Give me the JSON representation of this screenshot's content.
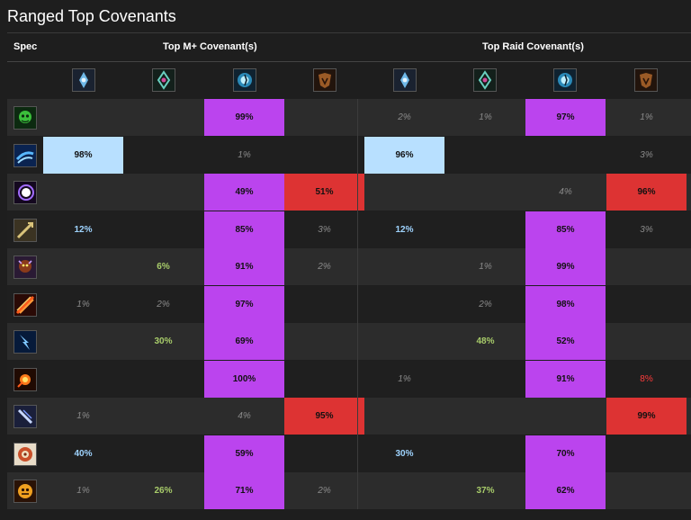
{
  "page": {
    "title": "Ranged Top Covenants"
  },
  "headers": {
    "spec": "Spec",
    "mplus": "Top M+ Covenant(s)",
    "raid": "Top Raid Covenant(s)"
  },
  "covenants": [
    {
      "icon": "kyrian-icon"
    },
    {
      "icon": "night-fae-icon"
    },
    {
      "icon": "necrolord-icon"
    },
    {
      "icon": "venthyr-icon"
    },
    {
      "icon": "kyrian-icon"
    },
    {
      "icon": "night-fae-icon"
    },
    {
      "icon": "necrolord-icon"
    },
    {
      "icon": "venthyr-icon"
    }
  ],
  "colors": {
    "kyrian": "#b8e0ff",
    "night_fae": "#a8cc6a",
    "necrolord": "#bb44ee",
    "venthyr": "#dd3333"
  },
  "rows": [
    {
      "spec_icon": "affliction-icon",
      "cells": [
        "",
        "",
        "99%",
        "",
        "2%",
        "1%",
        "97%",
        "1%"
      ]
    },
    {
      "spec_icon": "balance-icon",
      "cells": [
        "98%",
        "",
        "1%",
        "",
        "96%",
        "",
        "",
        "3%"
      ]
    },
    {
      "spec_icon": "shadow-icon",
      "cells": [
        "",
        "",
        "49%",
        "51%",
        "",
        "",
        "4%",
        "96%"
      ]
    },
    {
      "spec_icon": "marksmanship-icon",
      "cells": [
        "12%",
        "",
        "85%",
        "3%",
        "12%",
        "",
        "85%",
        "3%"
      ]
    },
    {
      "spec_icon": "demonology-icon",
      "cells": [
        "",
        "6%",
        "91%",
        "2%",
        "",
        "1%",
        "99%",
        ""
      ]
    },
    {
      "spec_icon": "destruction-icon",
      "cells": [
        "1%",
        "2%",
        "97%",
        "",
        "",
        "2%",
        "98%",
        ""
      ]
    },
    {
      "spec_icon": "elemental-icon",
      "cells": [
        "",
        "30%",
        "69%",
        "",
        "",
        "48%",
        "52%",
        ""
      ]
    },
    {
      "spec_icon": "fire-icon",
      "cells": [
        "",
        "",
        "100%",
        "",
        "1%",
        "",
        "91%",
        "8%"
      ]
    },
    {
      "spec_icon": "frost-icon",
      "cells": [
        "1%",
        "",
        "4%",
        "95%",
        "",
        "",
        "",
        "99%"
      ]
    },
    {
      "spec_icon": "beast-mastery-icon",
      "cells": [
        "40%",
        "",
        "59%",
        "",
        "30%",
        "",
        "70%",
        ""
      ]
    },
    {
      "spec_icon": "survival-icon",
      "cells": [
        "1%",
        "26%",
        "71%",
        "2%",
        "",
        "37%",
        "62%",
        ""
      ]
    }
  ]
}
